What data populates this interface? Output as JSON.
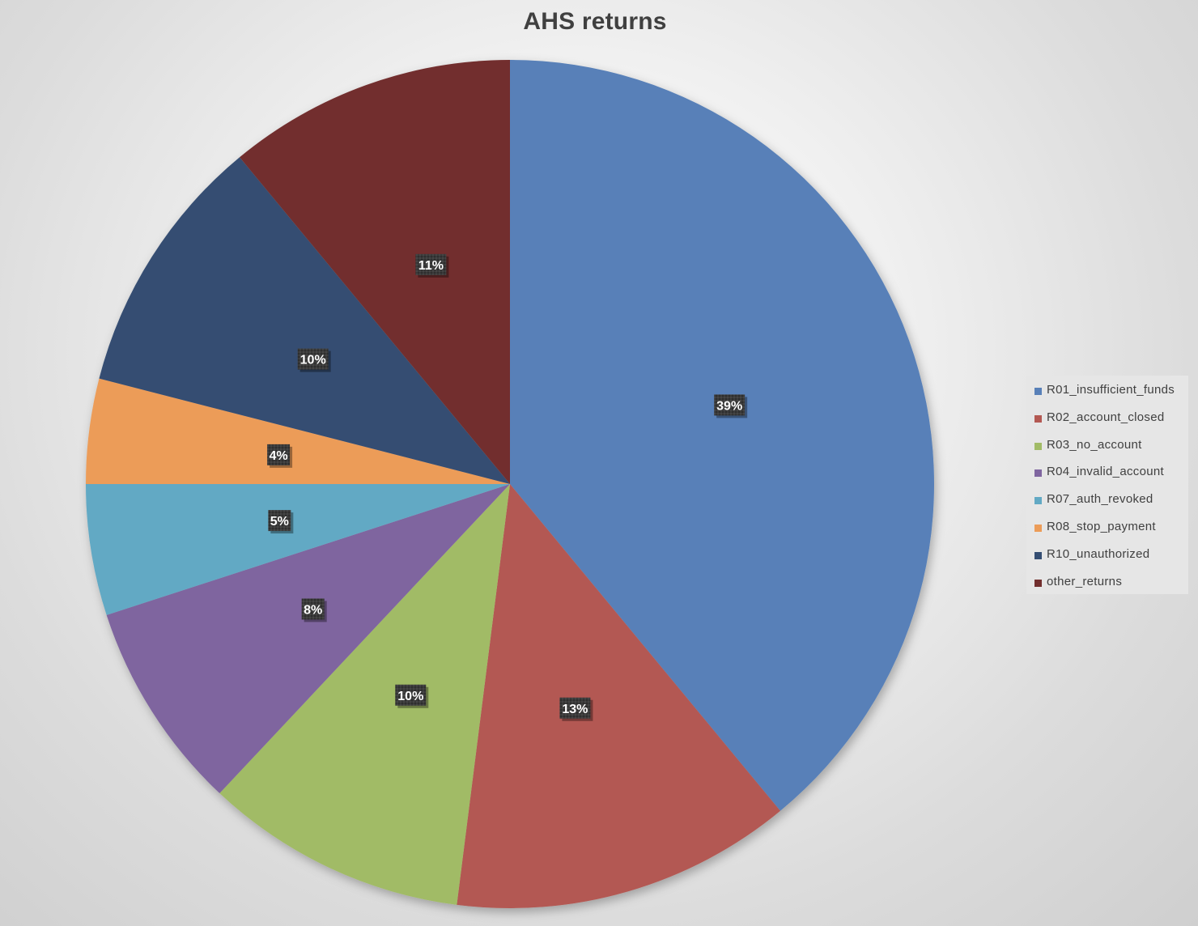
{
  "chart_data": {
    "type": "pie",
    "title": "AHS returns",
    "legend_position": "right",
    "categories": [
      "R01_insufficient_funds",
      "R02_account_closed",
      "R03_no_account",
      "R04_invalid_account",
      "R07_auth_revoked",
      "R08_stop_payment",
      "R10_unauthorized",
      "other_returns"
    ],
    "values": [
      39,
      13,
      10,
      8,
      5,
      4,
      10,
      11
    ],
    "labels": [
      "39%",
      "13%",
      "10%",
      "8%",
      "5%",
      "4%",
      "10%",
      "11%"
    ],
    "colors": [
      "#5880b8",
      "#b35852",
      "#a1bb66",
      "#7f659f",
      "#62a9c4",
      "#ec9c58",
      "#344d72",
      "#722f2e"
    ]
  }
}
